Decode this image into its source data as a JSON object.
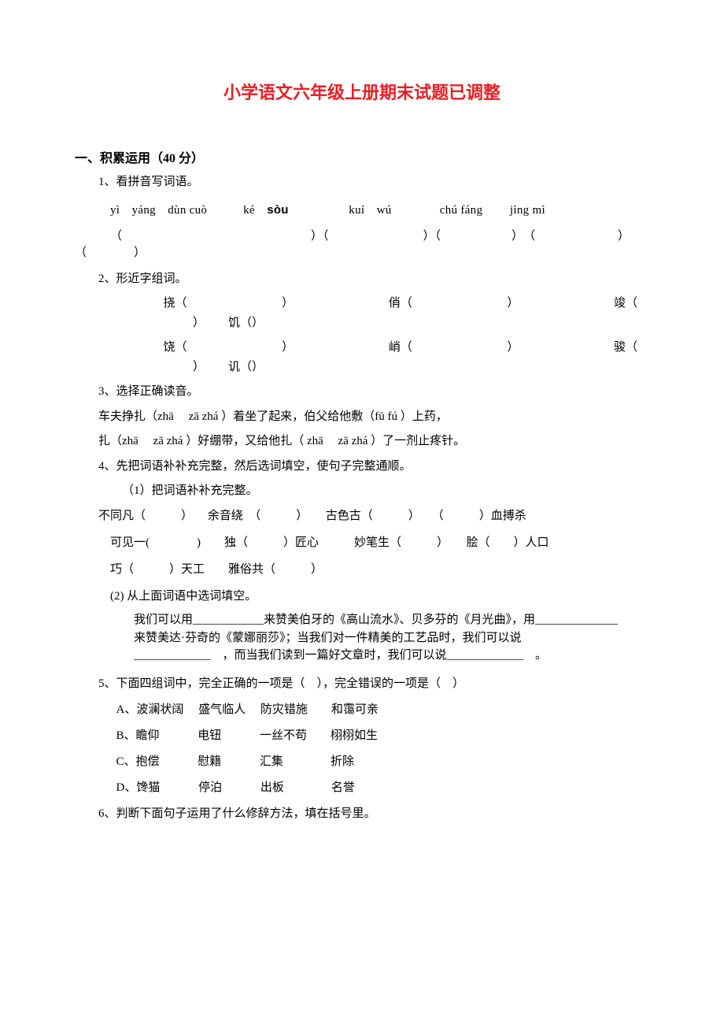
{
  "title": {
    "text": "小学语文六年级上册期末试题已调整",
    "color": "#ed1c24",
    "fontsize": 22
  },
  "section1": {
    "heading": "一、积累运用（40 分）",
    "fontsize": 16
  },
  "q1": {
    "label": "1、看拼音写词语。",
    "pinyin_row": "yì　yáng　dùn cuò　　　ké　",
    "pinyin_bold": "sòu",
    "pinyin_tail": "　　　　　kuí　wú　　　　chú fáng　　 jìng mì",
    "paren_row": "（　　　　　　　　　　　　　　　　）（　　　　　　　　）（　　　　　　）　（　　　　　　　）　（　　　　）"
  },
  "q2": {
    "label": "2、形近字组词。",
    "row1a": "挠（",
    "row1b": "）",
    "row1c": "俏（",
    "row1d": "）",
    "row1e": "竣（",
    "row2a": "）",
    "row2b": "饥（",
    "row2c": "）",
    "row3a": "饶（",
    "row3b": "）",
    "row3c": "峭（",
    "row3d": "）",
    "row3e": "骏（",
    "row4a": "）",
    "row4b": "讥（",
    "row4c": "）"
  },
  "q3": {
    "label": "3、选择正确读音。",
    "line1": "车夫挣扎（zhā　 zā zhá ）着坐了起来，伯父给他敷（fū fú ）上药，",
    "line2": "扎（zhā　 zā zhá ）好绷带，又给他扎（ zhā　 zā zhá ）了一剂止疼针。"
  },
  "q4": {
    "label": "4、先把词语补补充完整，然后选词填空，使句子完整通顺。",
    "sub1": "（1）把词语补补充完整。",
    "idiom_line1": "不同凡（　　　） 　余音绕　（　　　）　　古色古（　　　）　　（　　　）血搏杀",
    "idiom_line2": "可见一(　　　　)　　独（　　　）匠心　　　妙笔生（　　　）　　脍（　　）人口",
    "idiom_line3": "巧（　　　）天工　　雅俗共（　　　）",
    "sub2": "(2) 从上面词语中选词填空。",
    "fill_text": "我们可以用____________来赞美伯牙的《高山流水》、贝多芬的《月光曲》，用______________　来赞美达·芬奇的《蒙娜丽莎》；当我们对一件精美的工艺品时，我们可以说_____________　，而当我们读到一篇好文章时，我们可以说_____________　。"
  },
  "q5": {
    "label": "5、下面四组词中，完全正确的一项是（　），完全错误的一项是（　）",
    "optA": "A、波澜状阔　 盛气临人　 防灾错施　　和霭可亲",
    "optB": "B、瞻仰　　　 电钮　　　 一丝不苟　　栩栩如生",
    "optC": "C、抱偿　　　 慰籍　　　 汇集　　　　折除",
    "optD": "D、馋猫　　　 停泊　　　 出板　　　　名誉"
  },
  "q6": {
    "label": "6、判断下面句子运用了什么修辞方法，填在括号里。"
  },
  "body_fontsize": 15
}
